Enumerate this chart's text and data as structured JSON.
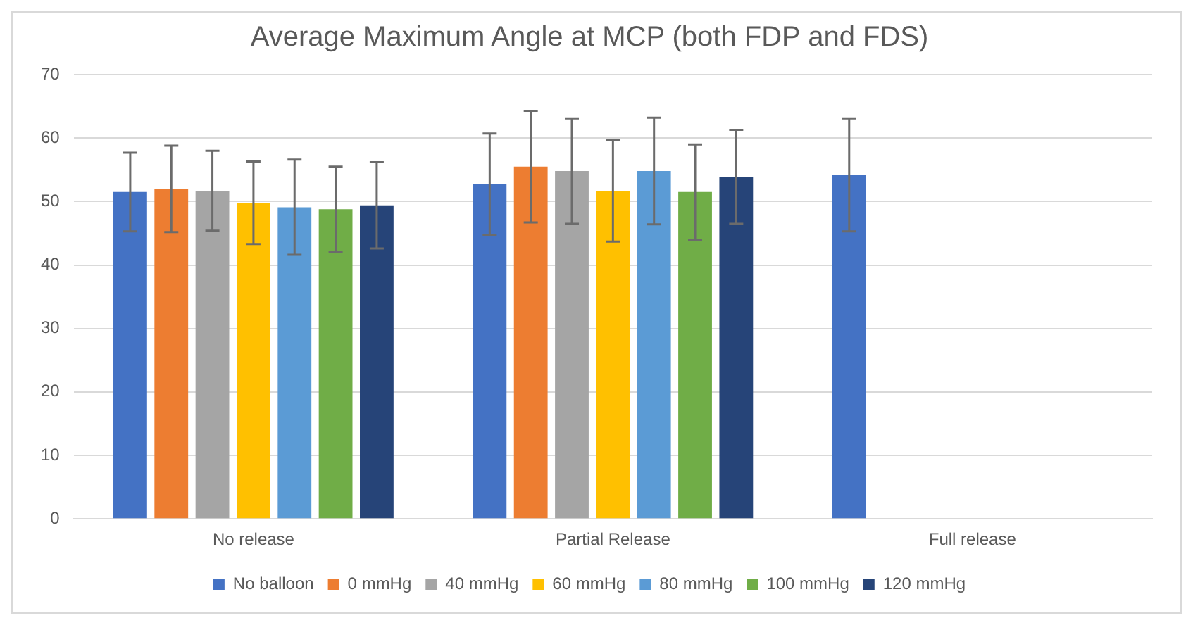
{
  "chart_data": {
    "type": "bar",
    "title": "Average Maximum Angle at MCP (both FDP and FDS)",
    "categories": [
      "No release",
      "Partial Release",
      "Full release"
    ],
    "series": [
      {
        "name": "No balloon",
        "color": "#4472c4",
        "values": [
          51.5,
          52.7,
          54.2
        ],
        "errors": [
          6.2,
          8,
          8.9
        ]
      },
      {
        "name": "0 mmHg",
        "color": "#ed7d31",
        "values": [
          52.0,
          55.5,
          null
        ],
        "errors": [
          6.8,
          8.8,
          null
        ]
      },
      {
        "name": "40 mmHg",
        "color": "#a5a5a5",
        "values": [
          51.7,
          54.8,
          null
        ],
        "errors": [
          6.3,
          8.3,
          null
        ]
      },
      {
        "name": "60 mmHg",
        "color": "#ffc000",
        "values": [
          49.8,
          51.7,
          null
        ],
        "errors": [
          6.5,
          8,
          null
        ]
      },
      {
        "name": "80 mmHg",
        "color": "#5b9bd5",
        "values": [
          49.1,
          54.8,
          null
        ],
        "errors": [
          7.5,
          8.4,
          null
        ]
      },
      {
        "name": "100 mmHg",
        "color": "#70ad47",
        "values": [
          48.8,
          51.5,
          null
        ],
        "errors": [
          6.7,
          7.5,
          null
        ]
      },
      {
        "name": "120 mmHg",
        "color": "#264478",
        "values": [
          49.4,
          53.9,
          null
        ],
        "errors": [
          6.8,
          7.4,
          null
        ]
      }
    ],
    "ylim": [
      0,
      70
    ],
    "yticks": [
      0,
      10,
      20,
      30,
      40,
      50,
      60,
      70
    ],
    "grid": "y",
    "legend": "bottom"
  }
}
